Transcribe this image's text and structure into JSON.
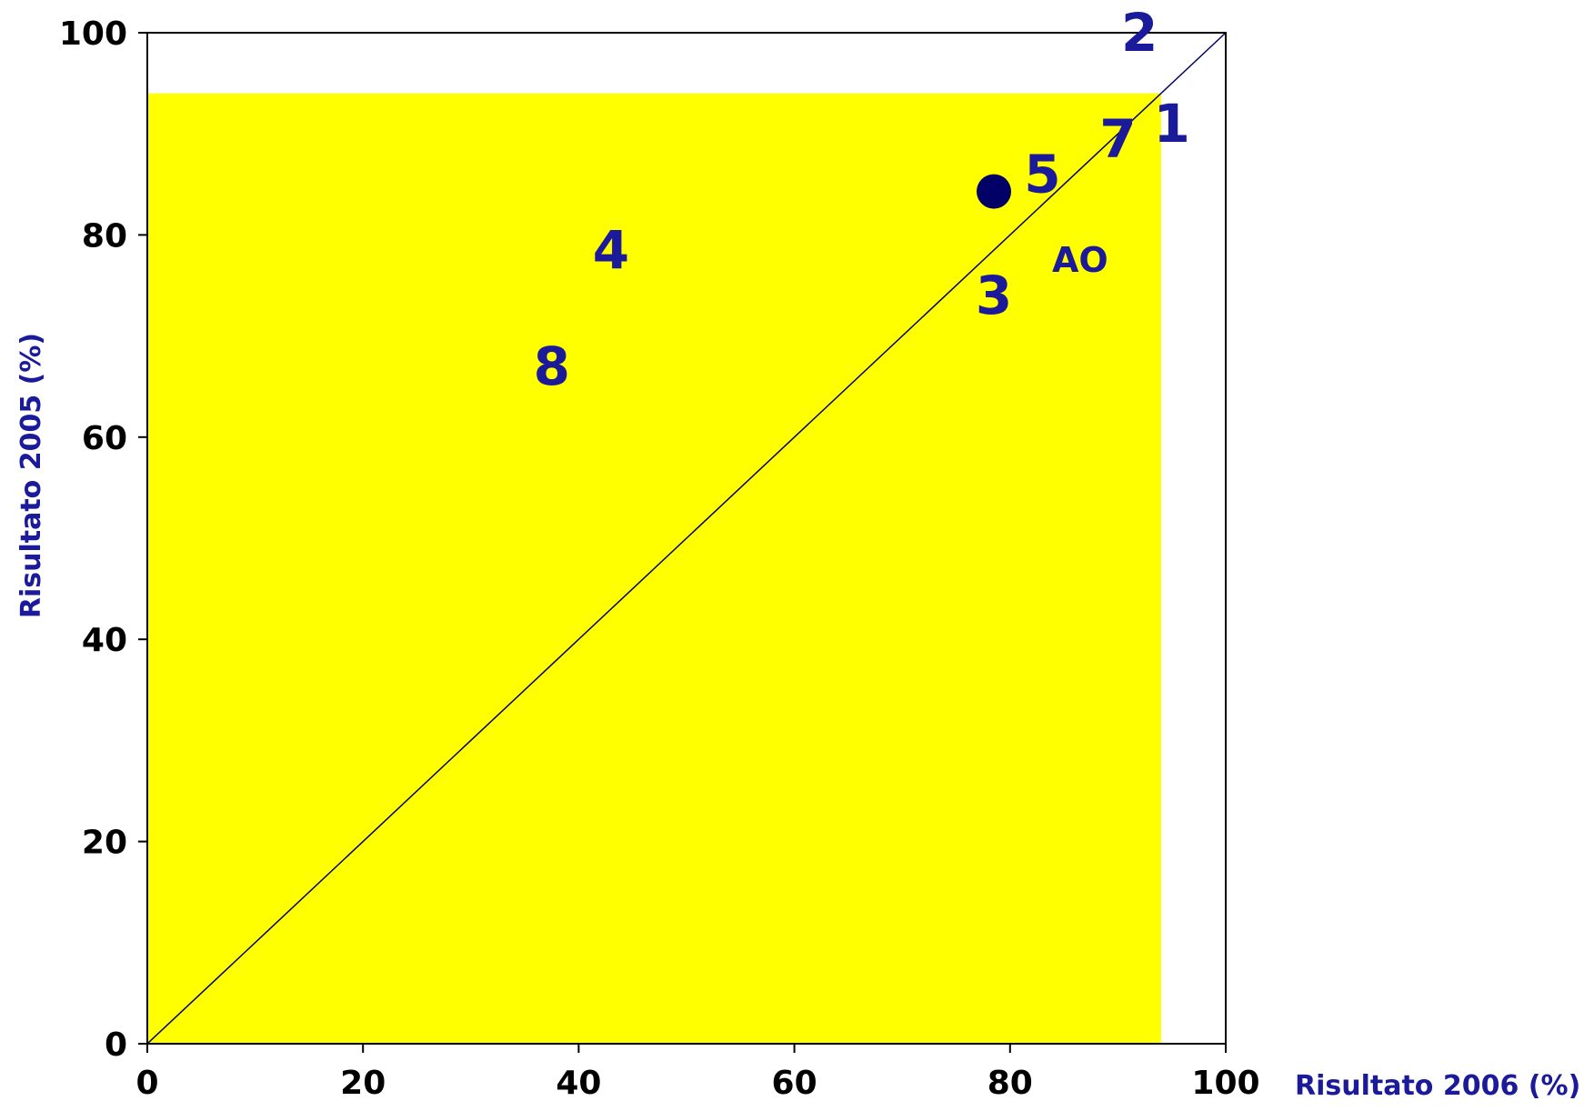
{
  "colors": {
    "highlight_region": "#ffff00",
    "label_color": "#1a1a9a",
    "marker_color": "#000066",
    "axis_color": "#000000"
  },
  "chart_data": {
    "type": "scatter",
    "xlabel": "Risultato 2006 (%)",
    "ylabel": "Risultato 2005 (%)",
    "xlim": [
      0,
      100
    ],
    "ylim": [
      0,
      100
    ],
    "x_ticks": [
      "0",
      "20",
      "40",
      "60",
      "80",
      "100"
    ],
    "y_ticks": [
      "0",
      "20",
      "40",
      "60",
      "80",
      "100"
    ],
    "grid": false,
    "diagonal_line": true,
    "highlight_region": {
      "x": [
        0,
        94
      ],
      "y": [
        0,
        94
      ]
    },
    "points": [
      {
        "label": "1",
        "x": 95,
        "y": 91
      },
      {
        "label": "2",
        "x": 92,
        "y": 100
      },
      {
        "label": "3",
        "x": 78.5,
        "y": 74
      },
      {
        "label": "4",
        "x": 43,
        "y": 78.5
      },
      {
        "label": "5",
        "x": 83,
        "y": 86
      },
      {
        "label": "7",
        "x": 90,
        "y": 89.5
      },
      {
        "label": "8",
        "x": 37.5,
        "y": 67
      },
      {
        "label": "AO",
        "x": 86.5,
        "y": 77.5
      }
    ],
    "marker": {
      "x": 78.5,
      "y": 84.3
    }
  }
}
